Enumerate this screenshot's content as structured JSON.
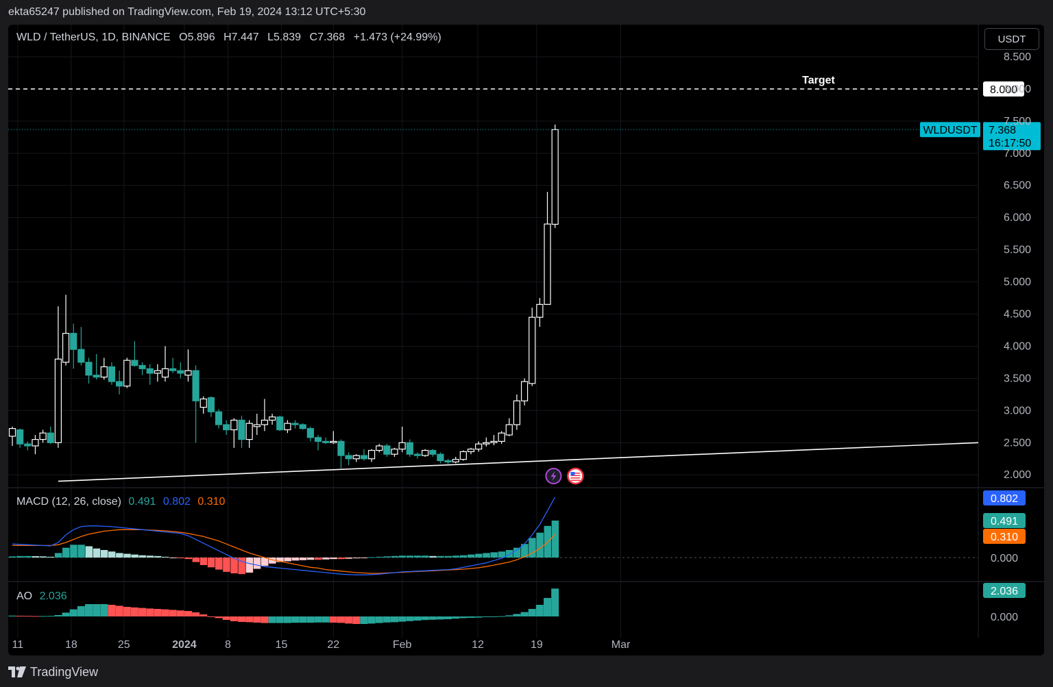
{
  "header": {
    "published": "ekta65247 published on TradingView.com, Feb 19, 2024 13:12 UTC+5:30"
  },
  "legend": {
    "symbol": "WLD / TetherUS, 1D, BINANCE",
    "o_label": "O",
    "o": "5.896",
    "h_label": "H",
    "h": "7.447",
    "l_label": "L",
    "l": "5.839",
    "c_label": "C",
    "c": "7.368",
    "change": "+1.473 (+24.99%)"
  },
  "currency_button": "USDT",
  "annotations": {
    "target_label": "Target",
    "target_value": "8.000",
    "symbol_tag": "WLDUSDT",
    "last_price": "7.368",
    "countdown": "16:17:50"
  },
  "macd": {
    "label": "MACD (12, 26, close)",
    "hist": "0.491",
    "macd": "0.802",
    "signal": "0.310",
    "zero": "0.000"
  },
  "ao": {
    "label": "AO",
    "value": "2.036",
    "zero": "0.000"
  },
  "colors": {
    "up": "#ffffff",
    "down": "#26a69a",
    "accent": "#00bcd4",
    "macd_line": "#2962ff",
    "signal_line": "#ff6d00",
    "hist_pos_strong": "#26a69a",
    "hist_pos_weak": "#b2dfdb",
    "hist_neg_strong": "#ff5252",
    "hist_neg_weak": "#ffcdd2"
  },
  "footer": {
    "brand": "TradingView"
  },
  "chart_data": {
    "type": "candlestick",
    "title": "WLD / TetherUS, 1D, BINANCE",
    "price_axis_ticks": [
      "8.500",
      "8.000",
      "7.500",
      "7.000",
      "6.500",
      "6.000",
      "5.500",
      "5.000",
      "4.500",
      "4.000",
      "3.500",
      "3.000",
      "2.500",
      "2.000"
    ],
    "price_range": [
      1.8,
      9.0
    ],
    "time_axis_labels": [
      "11",
      "18",
      "25",
      "2024",
      "8",
      "15",
      "22",
      "Feb",
      "12",
      "19",
      "Mar"
    ],
    "candles": [
      [
        2.6,
        2.75,
        2.45,
        2.72
      ],
      [
        2.7,
        2.72,
        2.42,
        2.48
      ],
      [
        2.48,
        2.52,
        2.38,
        2.45
      ],
      [
        2.45,
        2.62,
        2.32,
        2.55
      ],
      [
        2.55,
        2.7,
        2.5,
        2.65
      ],
      [
        2.65,
        2.75,
        2.48,
        2.5
      ],
      [
        2.5,
        4.62,
        2.42,
        3.8
      ],
      [
        3.75,
        4.8,
        3.7,
        4.2
      ],
      [
        4.2,
        4.35,
        3.65,
        3.95
      ],
      [
        3.95,
        4.3,
        3.7,
        3.75
      ],
      [
        3.75,
        3.82,
        3.42,
        3.55
      ],
      [
        3.55,
        3.88,
        3.48,
        3.52
      ],
      [
        3.52,
        3.82,
        3.48,
        3.68
      ],
      [
        3.68,
        3.75,
        3.4,
        3.45
      ],
      [
        3.45,
        3.62,
        3.25,
        3.38
      ],
      [
        3.38,
        3.82,
        3.35,
        3.78
      ],
      [
        3.78,
        4.08,
        3.68,
        3.7
      ],
      [
        3.7,
        3.75,
        3.55,
        3.65
      ],
      [
        3.65,
        3.72,
        3.4,
        3.58
      ],
      [
        3.58,
        3.72,
        3.45,
        3.62
      ],
      [
        3.52,
        4.0,
        3.45,
        3.65
      ],
      [
        3.65,
        3.82,
        3.58,
        3.62
      ],
      [
        3.62,
        3.75,
        3.5,
        3.58
      ],
      [
        3.55,
        3.95,
        3.45,
        3.62
      ],
      [
        3.62,
        3.7,
        2.5,
        3.15
      ],
      [
        3.05,
        3.22,
        2.95,
        3.18
      ],
      [
        3.2,
        3.22,
        2.9,
        2.98
      ],
      [
        2.98,
        3.02,
        2.72,
        2.78
      ],
      [
        2.78,
        2.85,
        2.62,
        2.7
      ],
      [
        2.7,
        2.88,
        2.42,
        2.85
      ],
      [
        2.85,
        2.92,
        2.42,
        2.55
      ],
      [
        2.55,
        2.85,
        2.42,
        2.8
      ],
      [
        2.75,
        2.95,
        2.62,
        2.78
      ],
      [
        2.78,
        3.18,
        2.68,
        2.85
      ],
      [
        2.85,
        2.95,
        2.78,
        2.9
      ],
      [
        2.9,
        2.92,
        2.68,
        2.7
      ],
      [
        2.7,
        2.85,
        2.65,
        2.8
      ],
      [
        2.8,
        2.85,
        2.72,
        2.78
      ],
      [
        2.78,
        2.8,
        2.7,
        2.72
      ],
      [
        2.72,
        2.75,
        2.52,
        2.58
      ],
      [
        2.58,
        2.62,
        2.38,
        2.52
      ],
      [
        2.52,
        2.58,
        2.48,
        2.5
      ],
      [
        2.5,
        2.68,
        2.48,
        2.52
      ],
      [
        2.52,
        2.55,
        2.1,
        2.3
      ],
      [
        2.3,
        2.35,
        2.15,
        2.25
      ],
      [
        2.25,
        2.32,
        2.2,
        2.3
      ],
      [
        2.3,
        2.4,
        2.22,
        2.25
      ],
      [
        2.25,
        2.4,
        2.2,
        2.38
      ],
      [
        2.38,
        2.48,
        2.35,
        2.45
      ],
      [
        2.45,
        2.48,
        2.28,
        2.32
      ],
      [
        2.32,
        2.42,
        2.28,
        2.4
      ],
      [
        2.4,
        2.75,
        2.35,
        2.5
      ],
      [
        2.5,
        2.55,
        2.28,
        2.32
      ],
      [
        2.32,
        2.35,
        2.25,
        2.3
      ],
      [
        2.3,
        2.4,
        2.28,
        2.38
      ],
      [
        2.38,
        2.4,
        2.28,
        2.32
      ],
      [
        2.32,
        2.35,
        2.18,
        2.22
      ],
      [
        2.22,
        2.25,
        2.16,
        2.2
      ],
      [
        2.2,
        2.28,
        2.18,
        2.24
      ],
      [
        2.24,
        2.38,
        2.22,
        2.36
      ],
      [
        2.36,
        2.42,
        2.32,
        2.4
      ],
      [
        2.4,
        2.52,
        2.36,
        2.48
      ],
      [
        2.48,
        2.58,
        2.44,
        2.5
      ],
      [
        2.5,
        2.62,
        2.46,
        2.52
      ],
      [
        2.52,
        2.68,
        2.48,
        2.65
      ],
      [
        2.62,
        2.88,
        2.6,
        2.78
      ],
      [
        2.78,
        3.25,
        2.7,
        3.15
      ],
      [
        3.15,
        3.5,
        3.08,
        3.45
      ],
      [
        3.42,
        4.6,
        3.38,
        4.45
      ],
      [
        4.45,
        4.75,
        4.3,
        4.65
      ],
      [
        4.65,
        6.4,
        4.65,
        5.9
      ],
      [
        5.896,
        7.447,
        5.839,
        7.368
      ]
    ],
    "target_level": 8.0,
    "trendline": {
      "from": [
        6,
        1.9
      ],
      "to": [
        95,
        2.5
      ]
    },
    "macd": {
      "axis_labels": [
        "0.802",
        "0.491",
        "0.310",
        "0.000"
      ],
      "histogram": [
        0.015,
        0.02,
        0.02,
        0.018,
        0.015,
        0.01,
        0.06,
        0.13,
        0.17,
        0.17,
        0.15,
        0.12,
        0.1,
        0.08,
        0.06,
        0.05,
        0.04,
        0.03,
        0.025,
        0.02,
        0.01,
        -0.005,
        -0.01,
        -0.02,
        -0.06,
        -0.1,
        -0.13,
        -0.16,
        -0.19,
        -0.21,
        -0.22,
        -0.2,
        -0.15,
        -0.11,
        -0.08,
        -0.06,
        -0.05,
        -0.04,
        -0.035,
        -0.03,
        -0.03,
        -0.025,
        -0.02,
        -0.02,
        -0.015,
        -0.01,
        -0.005,
        0.005,
        0.01,
        0.015,
        0.02,
        0.025,
        0.025,
        0.025,
        0.025,
        0.02,
        0.02,
        0.02,
        0.025,
        0.03,
        0.04,
        0.05,
        0.06,
        0.07,
        0.08,
        0.1,
        0.13,
        0.18,
        0.26,
        0.33,
        0.42,
        0.491
      ],
      "macd_line": [
        0.18,
        0.175,
        0.17,
        0.165,
        0.16,
        0.155,
        0.2,
        0.3,
        0.37,
        0.41,
        0.42,
        0.42,
        0.415,
        0.41,
        0.4,
        0.39,
        0.38,
        0.37,
        0.36,
        0.35,
        0.34,
        0.33,
        0.32,
        0.29,
        0.24,
        0.19,
        0.14,
        0.09,
        0.04,
        -0.01,
        -0.05,
        -0.08,
        -0.1,
        -0.12,
        -0.13,
        -0.14,
        -0.15,
        -0.16,
        -0.17,
        -0.18,
        -0.19,
        -0.2,
        -0.21,
        -0.22,
        -0.225,
        -0.23,
        -0.23,
        -0.225,
        -0.22,
        -0.21,
        -0.2,
        -0.19,
        -0.185,
        -0.18,
        -0.175,
        -0.17,
        -0.165,
        -0.16,
        -0.15,
        -0.13,
        -0.11,
        -0.09,
        -0.07,
        -0.04,
        -0.01,
        0.04,
        0.1,
        0.18,
        0.3,
        0.44,
        0.62,
        0.802
      ],
      "signal_line": [
        0.16,
        0.16,
        0.16,
        0.16,
        0.16,
        0.16,
        0.17,
        0.2,
        0.24,
        0.28,
        0.31,
        0.33,
        0.35,
        0.36,
        0.37,
        0.37,
        0.37,
        0.37,
        0.365,
        0.36,
        0.355,
        0.345,
        0.335,
        0.32,
        0.3,
        0.28,
        0.25,
        0.22,
        0.18,
        0.14,
        0.1,
        0.06,
        0.03,
        0.0,
        -0.03,
        -0.05,
        -0.07,
        -0.09,
        -0.11,
        -0.13,
        -0.14,
        -0.16,
        -0.17,
        -0.18,
        -0.19,
        -0.2,
        -0.205,
        -0.21,
        -0.21,
        -0.205,
        -0.2,
        -0.195,
        -0.19,
        -0.185,
        -0.18,
        -0.175,
        -0.17,
        -0.165,
        -0.16,
        -0.155,
        -0.145,
        -0.135,
        -0.12,
        -0.1,
        -0.08,
        -0.06,
        -0.03,
        0.01,
        0.06,
        0.12,
        0.2,
        0.31
      ]
    },
    "ao": {
      "axis_labels": [
        "2.036",
        "0.000"
      ],
      "histogram": [
        0.06,
        0.05,
        0.04,
        0.03,
        0.03,
        0.04,
        0.1,
        0.28,
        0.52,
        0.75,
        0.9,
        0.9,
        0.9,
        0.85,
        0.78,
        0.7,
        0.66,
        0.62,
        0.58,
        0.55,
        0.52,
        0.48,
        0.44,
        0.4,
        0.3,
        0.15,
        0.0,
        -0.12,
        -0.25,
        -0.35,
        -0.4,
        -0.42,
        -0.45,
        -0.48,
        -0.48,
        -0.48,
        -0.48,
        -0.46,
        -0.46,
        -0.46,
        -0.44,
        -0.44,
        -0.45,
        -0.47,
        -0.52,
        -0.55,
        -0.55,
        -0.52,
        -0.48,
        -0.44,
        -0.42,
        -0.38,
        -0.34,
        -0.3,
        -0.26,
        -0.24,
        -0.22,
        -0.2,
        -0.16,
        -0.12,
        -0.1,
        -0.08,
        -0.05,
        -0.02,
        0.02,
        0.08,
        0.18,
        0.32,
        0.55,
        0.85,
        1.35,
        2.036
      ]
    }
  }
}
